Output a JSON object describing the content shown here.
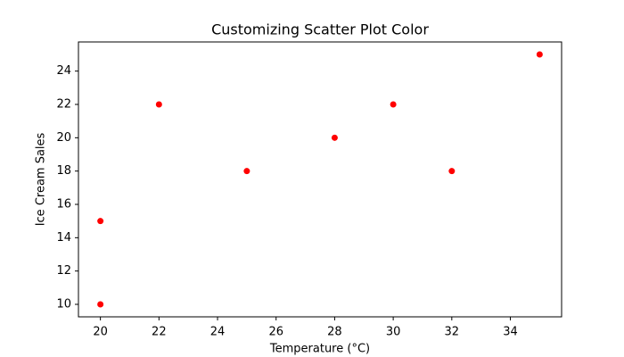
{
  "chart_data": {
    "type": "scatter",
    "title": "Customizing Scatter Plot Color",
    "x_label": "Temperature (°C)",
    "y_label": "Ice Cream Sales",
    "x": [
      20,
      20,
      22,
      25,
      28,
      30,
      32,
      35
    ],
    "values": [
      10,
      15,
      22,
      18,
      20,
      22,
      18,
      25
    ],
    "color": "#ff0000",
    "xlim": [
      19.25,
      35.75
    ],
    "xticks": [
      20,
      22,
      24,
      26,
      28,
      30,
      32,
      34
    ],
    "ylim": [
      9.25,
      25.75
    ],
    "yticks": [
      10,
      12,
      14,
      16,
      18,
      20,
      22,
      24
    ],
    "grid": false
  }
}
